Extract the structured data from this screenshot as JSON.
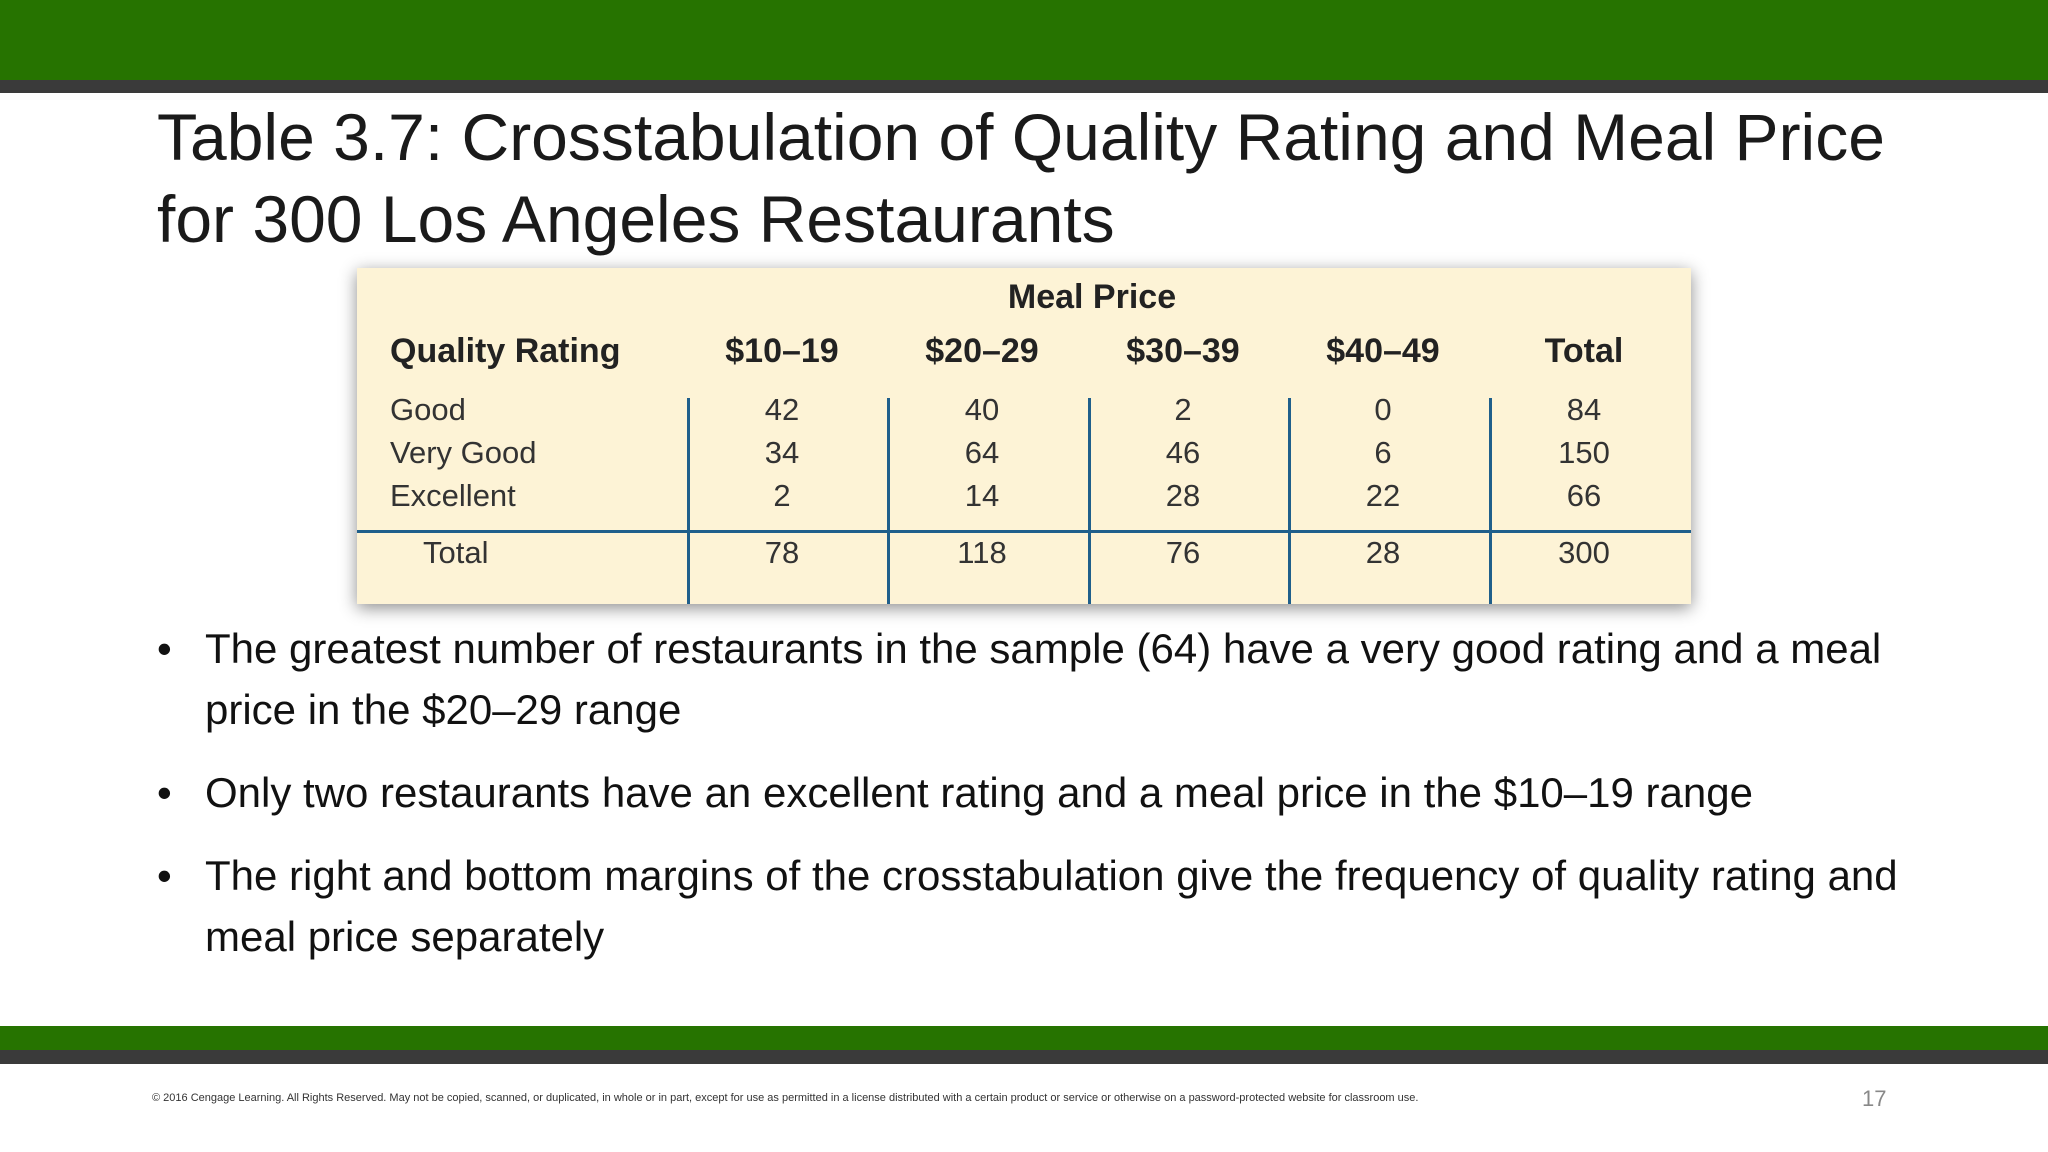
{
  "title": "Table 3.7: Crosstabulation of Quality Rating and Meal Price for 300 Los Angeles Restaurants",
  "table": {
    "group_header": "Meal Price",
    "row_header": "Quality Rating",
    "columns": [
      "$10–19",
      "$20–29",
      "$30–39",
      "$40–49",
      "Total"
    ],
    "rows": [
      {
        "label": "Good",
        "values": [
          "42",
          "40",
          "2",
          "0",
          "84"
        ]
      },
      {
        "label": "Very Good",
        "values": [
          "34",
          "64",
          "46",
          "6",
          "150"
        ]
      },
      {
        "label": "Excellent",
        "values": [
          "2",
          "14",
          "28",
          "22",
          "66"
        ]
      }
    ],
    "total_row": {
      "label": "Total",
      "values": [
        "78",
        "118",
        "76",
        "28",
        "300"
      ]
    }
  },
  "bullets": [
    "The greatest number of restaurants in the sample (64) have a very good rating and a meal price in the $20–29 range",
    "Only two restaurants have an excellent rating and a meal price in the $10–19 range",
    "The right and bottom margins of the crosstabulation give the frequency of quality rating and meal price separately"
  ],
  "bullet_symbol": "•",
  "footer": "© 2016 Cengage Learning.  All Rights Reserved.  May not be copied, scanned, or duplicated, in whole or in part, except for use as permitted in a license distributed with a certain product or service or otherwise on a password-protected website for classroom use.",
  "page_number": "17",
  "colors": {
    "accent_green": "#267300",
    "band_gray": "#3a3a3a",
    "table_bg": "#fdf3d6",
    "table_rule": "#1f5f8b"
  }
}
